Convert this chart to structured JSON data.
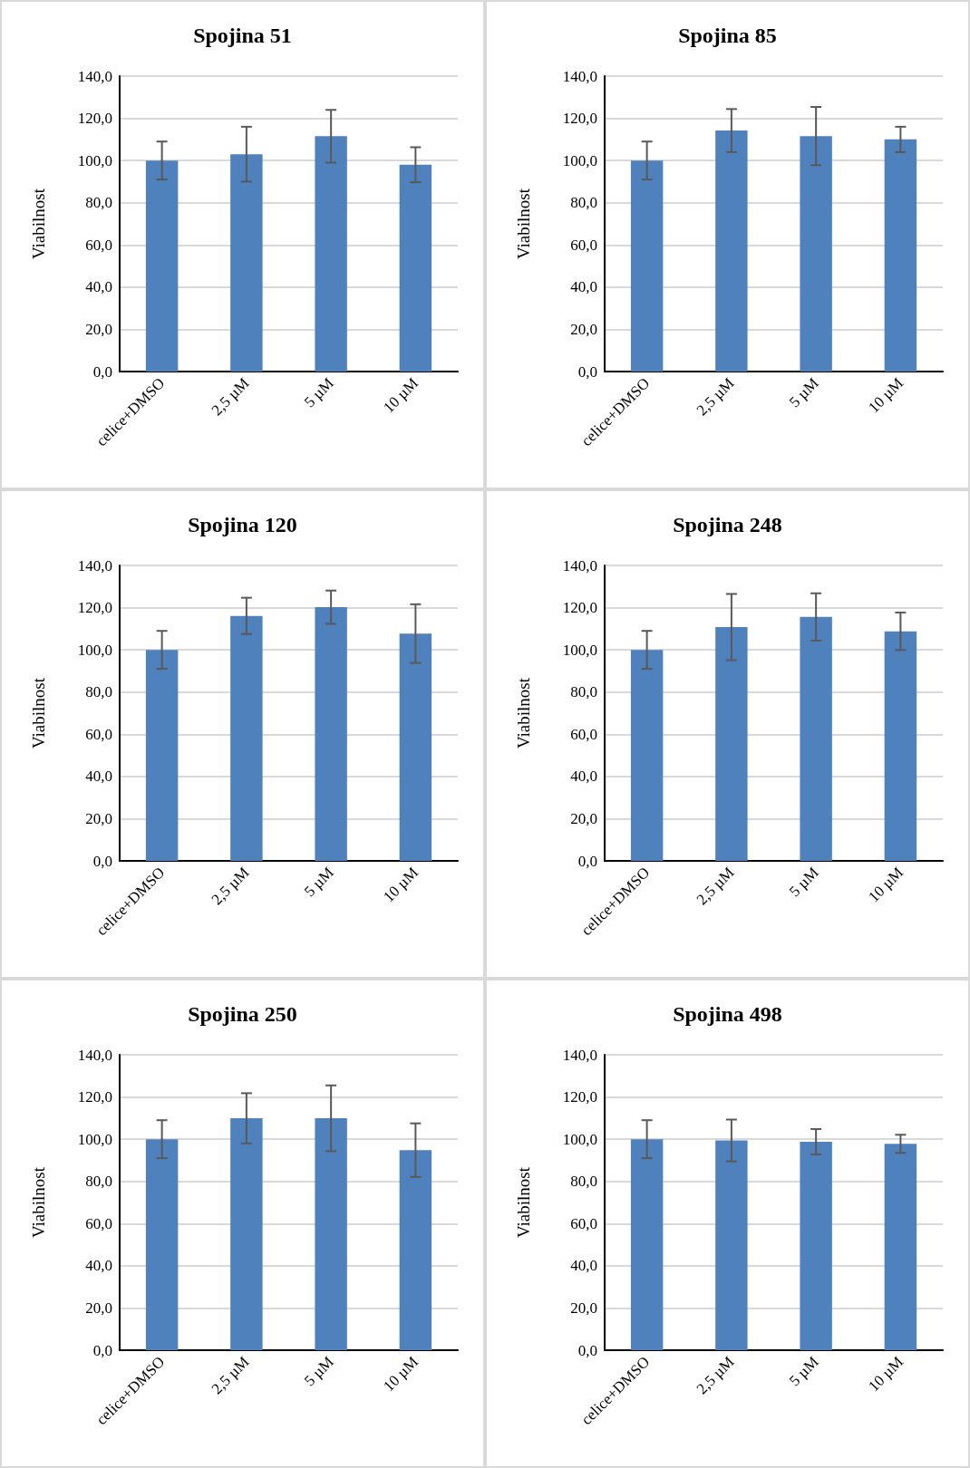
{
  "chart_data": [
    {
      "type": "bar",
      "title": "Spojina 51",
      "ylabel": "Viabilnost",
      "categories": [
        "celice+DMSO",
        "2,5 µM",
        "5 µM",
        "10 µM"
      ],
      "values": [
        100,
        103,
        111.5,
        98
      ],
      "errors": [
        9,
        13,
        12.5,
        8.3
      ],
      "color": "#4f81bd",
      "ylim": [
        0,
        140
      ],
      "yticks": [
        {
          "value": 0,
          "label": "0,0"
        },
        {
          "value": 20,
          "label": "20,0"
        },
        {
          "value": 40,
          "label": "40,0"
        },
        {
          "value": 60,
          "label": "60,0"
        },
        {
          "value": 80,
          "label": "80,0"
        },
        {
          "value": 100,
          "label": "100,0"
        },
        {
          "value": 120,
          "label": "120,0"
        },
        {
          "value": 140,
          "label": "140,0"
        }
      ],
      "grid": "y"
    },
    {
      "type": "bar",
      "title": "Spojina 85",
      "ylabel": "Viabilnost",
      "categories": [
        "celice+DMSO",
        "2,5 µM",
        "5 µM",
        "10 µM"
      ],
      "values": [
        100,
        114.2,
        111.6,
        110
      ],
      "errors": [
        9,
        10.2,
        13.8,
        6
      ],
      "color": "#4f81bd",
      "ylim": [
        0,
        140
      ],
      "yticks": [
        {
          "value": 0,
          "label": "0,0"
        },
        {
          "value": 20,
          "label": "20,0"
        },
        {
          "value": 40,
          "label": "40,0"
        },
        {
          "value": 60,
          "label": "60,0"
        },
        {
          "value": 80,
          "label": "80,0"
        },
        {
          "value": 100,
          "label": "100,0"
        },
        {
          "value": 120,
          "label": "120,0"
        },
        {
          "value": 140,
          "label": "140,0"
        }
      ],
      "grid": "y"
    },
    {
      "type": "bar",
      "title": "Spojina 120",
      "ylabel": "Viabilnost",
      "categories": [
        "celice+DMSO",
        "2,5 µM",
        "5 µM",
        "10 µM"
      ],
      "values": [
        100,
        116.1,
        120.2,
        107.7
      ],
      "errors": [
        9,
        8.6,
        7.9,
        13.9
      ],
      "color": "#4f81bd",
      "ylim": [
        0,
        140
      ],
      "yticks": [
        {
          "value": 0,
          "label": "0,0"
        },
        {
          "value": 20,
          "label": "20,0"
        },
        {
          "value": 40,
          "label": "40,0"
        },
        {
          "value": 60,
          "label": "60,0"
        },
        {
          "value": 80,
          "label": "80,0"
        },
        {
          "value": 100,
          "label": "100,0"
        },
        {
          "value": 120,
          "label": "120,0"
        },
        {
          "value": 140,
          "label": "140,0"
        }
      ],
      "grid": "y"
    },
    {
      "type": "bar",
      "title": "Spojina 248",
      "ylabel": "Viabilnost",
      "categories": [
        "celice+DMSO",
        "2,5 µM",
        "5 µM",
        "10 µM"
      ],
      "values": [
        100,
        110.8,
        115.6,
        108.8
      ],
      "errors": [
        9,
        15.7,
        11.2,
        8.9
      ],
      "color": "#4f81bd",
      "ylim": [
        0,
        140
      ],
      "yticks": [
        {
          "value": 0,
          "label": "0,0"
        },
        {
          "value": 20,
          "label": "20,0"
        },
        {
          "value": 40,
          "label": "40,0"
        },
        {
          "value": 60,
          "label": "60,0"
        },
        {
          "value": 80,
          "label": "80,0"
        },
        {
          "value": 100,
          "label": "100,0"
        },
        {
          "value": 120,
          "label": "120,0"
        },
        {
          "value": 140,
          "label": "140,0"
        }
      ],
      "grid": "y"
    },
    {
      "type": "bar",
      "title": "Spojina 250",
      "ylabel": "Viabilnost",
      "categories": [
        "celice+DMSO",
        "2,5 µM",
        "5 µM",
        "10 µM"
      ],
      "values": [
        100,
        109.9,
        109.9,
        94.8
      ],
      "errors": [
        9,
        11.9,
        15.6,
        12.7
      ],
      "color": "#4f81bd",
      "ylim": [
        0,
        140
      ],
      "yticks": [
        {
          "value": 0,
          "label": "0,0"
        },
        {
          "value": 20,
          "label": "20,0"
        },
        {
          "value": 40,
          "label": "40,0"
        },
        {
          "value": 60,
          "label": "60,0"
        },
        {
          "value": 80,
          "label": "80,0"
        },
        {
          "value": 100,
          "label": "100,0"
        },
        {
          "value": 120,
          "label": "120,0"
        },
        {
          "value": 140,
          "label": "140,0"
        }
      ],
      "grid": "y"
    },
    {
      "type": "bar",
      "title": "Spojina 498",
      "ylabel": "Viabilnost",
      "categories": [
        "celice+DMSO",
        "2,5 µM",
        "5 µM",
        "10 µM"
      ],
      "values": [
        100,
        99.4,
        98.8,
        97.8
      ],
      "errors": [
        9,
        9.9,
        6,
        4.3
      ],
      "color": "#4f81bd",
      "ylim": [
        0,
        140
      ],
      "yticks": [
        {
          "value": 0,
          "label": "0,0"
        },
        {
          "value": 20,
          "label": "20,0"
        },
        {
          "value": 40,
          "label": "40,0"
        },
        {
          "value": 60,
          "label": "60,0"
        },
        {
          "value": 80,
          "label": "80,0"
        },
        {
          "value": 100,
          "label": "100,0"
        },
        {
          "value": 120,
          "label": "120,0"
        },
        {
          "value": 140,
          "label": "140,0"
        }
      ],
      "grid": "y"
    }
  ]
}
